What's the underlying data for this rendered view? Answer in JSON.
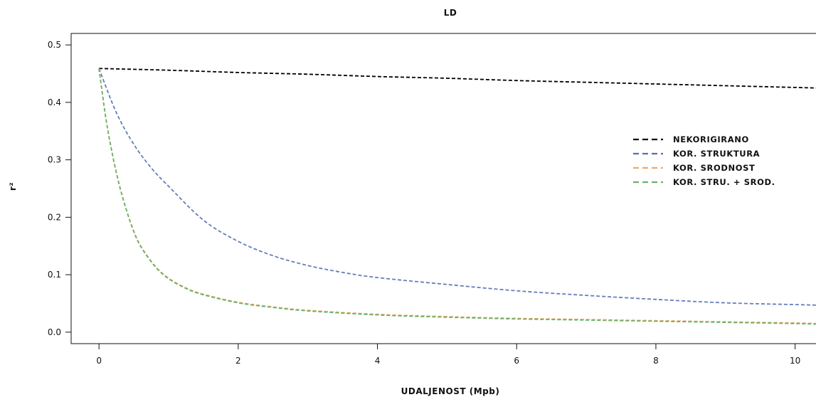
{
  "chart_data": {
    "type": "line",
    "title": "LD",
    "xlabel": "UDALJENOST (Mpb)",
    "ylabel": "r²",
    "xlim": [
      -0.4,
      10.3
    ],
    "ylim": [
      -0.02,
      0.52
    ],
    "x_ticks": [
      0,
      2,
      4,
      6,
      8,
      10
    ],
    "y_ticks": [
      0.0,
      0.1,
      0.2,
      0.3,
      0.4,
      0.5
    ],
    "grid": false,
    "legend_position": "right",
    "series": [
      {
        "name": "NEKORIGIRANO",
        "color": "#000000",
        "dash": "dashed",
        "x": [
          0,
          1,
          2,
          3,
          4,
          5,
          6,
          7,
          8,
          9,
          10,
          10.3
        ],
        "y": [
          0.459,
          0.456,
          0.452,
          0.449,
          0.445,
          0.442,
          0.438,
          0.435,
          0.432,
          0.429,
          0.426,
          0.425
        ]
      },
      {
        "name": "KOR. STRUKTURA",
        "color": "#5470b0",
        "dash": "dashed",
        "x": [
          0,
          0.25,
          0.5,
          0.75,
          1,
          1.5,
          2,
          2.5,
          3,
          3.5,
          4,
          5,
          6,
          7,
          8,
          9,
          10,
          10.3
        ],
        "y": [
          0.459,
          0.382,
          0.327,
          0.286,
          0.254,
          0.195,
          0.158,
          0.133,
          0.116,
          0.104,
          0.095,
          0.083,
          0.072,
          0.064,
          0.057,
          0.051,
          0.048,
          0.047
        ],
        "opacity": 0.9
      },
      {
        "name": "KOR. SRODNOST",
        "color": "#f0a766",
        "dash": "dashed",
        "x": [
          0,
          0.1,
          0.2,
          0.3,
          0.4,
          0.5,
          0.6,
          0.8,
          1,
          1.25,
          1.5,
          2,
          2.5,
          3,
          4,
          5,
          6,
          7,
          8,
          9,
          10,
          10.3
        ],
        "y": [
          0.459,
          0.372,
          0.306,
          0.253,
          0.211,
          0.176,
          0.15,
          0.116,
          0.094,
          0.077,
          0.066,
          0.052,
          0.044,
          0.038,
          0.031,
          0.027,
          0.024,
          0.022,
          0.02,
          0.018,
          0.016,
          0.015
        ]
      },
      {
        "name": "KOR. STRU. + SROD.",
        "color": "#6bb36b",
        "dash": "dashed",
        "x": [
          0,
          0.1,
          0.2,
          0.3,
          0.4,
          0.5,
          0.6,
          0.8,
          1,
          1.25,
          1.5,
          2,
          2.5,
          3,
          4,
          5,
          6,
          7,
          8,
          9,
          10,
          10.3
        ],
        "y": [
          0.459,
          0.371,
          0.305,
          0.252,
          0.21,
          0.175,
          0.149,
          0.115,
          0.093,
          0.076,
          0.065,
          0.051,
          0.043,
          0.037,
          0.03,
          0.026,
          0.023,
          0.021,
          0.019,
          0.017,
          0.015,
          0.014
        ]
      }
    ]
  }
}
